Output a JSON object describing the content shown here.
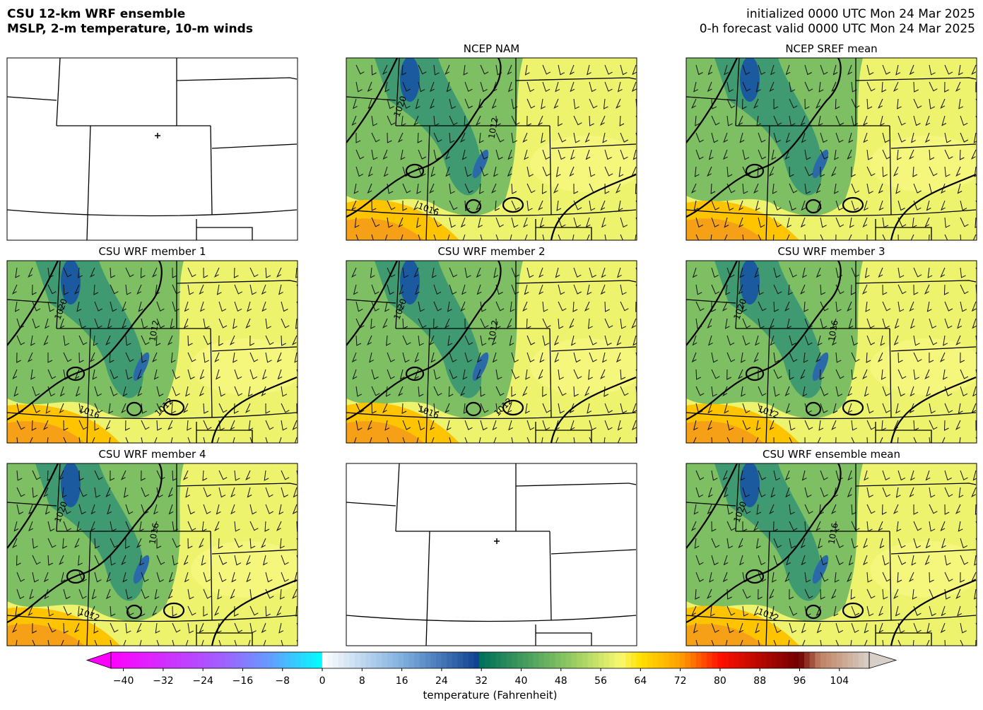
{
  "header": {
    "title_lines": [
      "CSU 12-km WRF ensemble",
      "MSLP, 2-m temperature, 10-m winds"
    ],
    "valid_lines": [
      "initialized 0000 UTC Mon 24 Mar 2025",
      "0-h forecast valid 0000 UTC Mon 24 Mar 2025"
    ]
  },
  "panels": [
    {
      "title": "NCEP NAM",
      "contour_labels": [
        "1020",
        "1012",
        "1016"
      ]
    },
    {
      "title": "NCEP SREF mean"
    },
    {
      "title": "CSU WRF member 1",
      "contour_labels": [
        "1020",
        "1012",
        "1016",
        "1012"
      ]
    },
    {
      "title": "CSU WRF member 2",
      "contour_labels": [
        "1020",
        "1012",
        "1016",
        "1012"
      ]
    },
    {
      "title": "CSU WRF member 3",
      "contour_labels": [
        "1020",
        "1016",
        "1012"
      ]
    },
    {
      "title": "CSU WRF member 4",
      "contour_labels": [
        "1020",
        "1016",
        "1012"
      ]
    },
    {
      "title": "CSU WRF ensemble mean",
      "contour_labels": [
        "1020",
        "1016",
        "1012"
      ]
    }
  ],
  "colorbar": {
    "label": "temperature (Fahrenheit)",
    "lim": [
      -42.5,
      110
    ],
    "ticks": [
      {
        "value": -40,
        "label": "−40"
      },
      {
        "value": -32,
        "label": "−32"
      },
      {
        "value": -24,
        "label": "−24"
      },
      {
        "value": -16,
        "label": "−16"
      },
      {
        "value": -8,
        "label": "−8"
      },
      0,
      8,
      16,
      24,
      32,
      40,
      48,
      56,
      64,
      72,
      80,
      88,
      96,
      104
    ],
    "colormap": [
      {
        "value": -42.5,
        "color": "#ff00ff"
      },
      {
        "value": -20,
        "color": "#a060ff"
      },
      {
        "value": -10,
        "color": "#60a0ff"
      },
      {
        "value": -0.01,
        "color": "#00ffff"
      },
      {
        "value": 0,
        "color": "#ffffff"
      },
      {
        "value": 16,
        "color": "#80b0e0"
      },
      {
        "value": 31.99,
        "color": "#0a3c8c"
      },
      {
        "value": 32,
        "color": "#00705a"
      },
      {
        "value": 48,
        "color": "#80c060"
      },
      {
        "value": 60,
        "color": "#f8f870"
      },
      {
        "value": 64,
        "color": "#ffe000"
      },
      {
        "value": 72,
        "color": "#ffa000"
      },
      {
        "value": 80,
        "color": "#ff1000"
      },
      {
        "value": 96,
        "color": "#700000"
      },
      {
        "value": 100,
        "color": "#c08060"
      },
      {
        "value": 110,
        "color": "#d8d0c8"
      }
    ]
  }
}
